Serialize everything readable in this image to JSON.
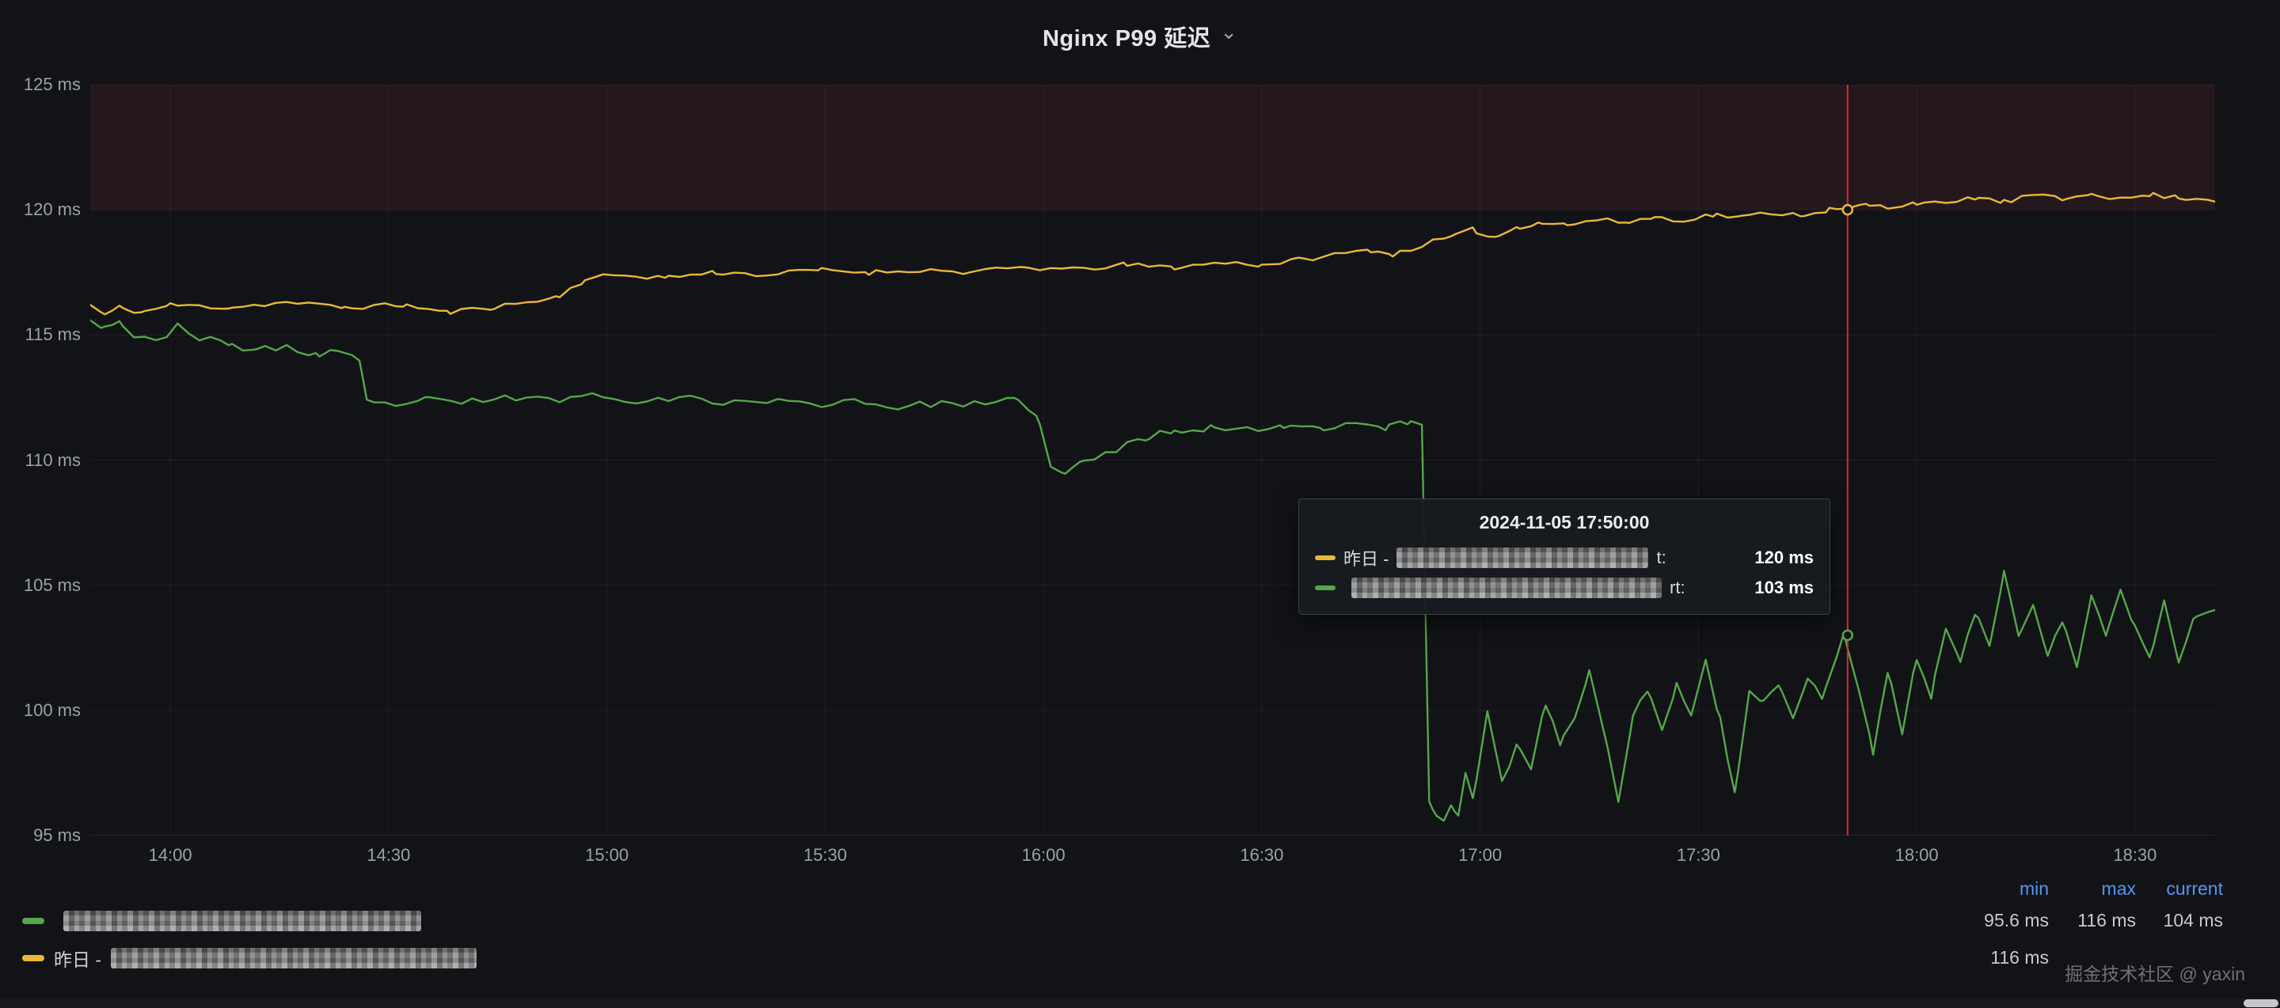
{
  "panel": {
    "title": "Nginx P99 延迟",
    "chevron_icon": "⌄"
  },
  "tooltip": {
    "time": "2024-11-05 17:50:00",
    "rows": [
      {
        "color": "#EAB839",
        "label_prefix": "昨日 - ",
        "redacted_width": 318,
        "label_suffix": "t:",
        "value": "120 ms"
      },
      {
        "color": "#56A64B",
        "label_prefix": "",
        "redacted_width": 392,
        "label_suffix": "rt:",
        "value": "103 ms"
      }
    ]
  },
  "legend": {
    "headers": [
      "min",
      "max",
      "current"
    ],
    "rows": [
      {
        "color": "#56A64B",
        "label_prefix": "",
        "redacted_width": 452,
        "min": "95.6 ms",
        "max": "116 ms",
        "current": "104 ms"
      },
      {
        "color": "#EAB839",
        "label_prefix": "昨日 - ",
        "redacted_width": 462,
        "min": "116 ms",
        "max": "",
        "current": ""
      }
    ]
  },
  "watermark": "掘金技术社区 @ yaxin",
  "chart_data": {
    "type": "line",
    "title": "Nginx P99 延迟",
    "x_unit": "minutes-since-midnight",
    "xlim": [
      829,
      1121
    ],
    "ylim": [
      95,
      125
    ],
    "grid": true,
    "y_ticks": [
      {
        "v": 125,
        "label": "125 ms"
      },
      {
        "v": 120,
        "label": "120 ms"
      },
      {
        "v": 115,
        "label": "115 ms"
      },
      {
        "v": 110,
        "label": "110 ms"
      },
      {
        "v": 105,
        "label": "105 ms"
      },
      {
        "v": 100,
        "label": "100 ms"
      },
      {
        "v": 95,
        "label": "95 ms"
      }
    ],
    "x_ticks": [
      {
        "t": 840,
        "label": "14:00"
      },
      {
        "t": 870,
        "label": "14:30"
      },
      {
        "t": 900,
        "label": "15:00"
      },
      {
        "t": 930,
        "label": "15:30"
      },
      {
        "t": 960,
        "label": "16:00"
      },
      {
        "t": 990,
        "label": "16:30"
      },
      {
        "t": 1020,
        "label": "17:00"
      },
      {
        "t": 1050,
        "label": "17:30"
      },
      {
        "t": 1080,
        "label": "18:00"
      },
      {
        "t": 1110,
        "label": "18:30"
      }
    ],
    "threshold_region": {
      "from": 120,
      "to": 125,
      "color": "rgba(242,73,92,0.09)"
    },
    "annotation": {
      "t": 1070.5,
      "color": "#E02434"
    },
    "markers": [
      {
        "t": 1070.5,
        "v": 120,
        "color": "#EAB839"
      },
      {
        "t": 1070.5,
        "v": 103,
        "color": "#56A64B"
      }
    ],
    "series": [
      {
        "name": "昨日 - [redacted]",
        "color": "#EAB839",
        "noise": 0.1,
        "seed": 11,
        "points": [
          [
            829,
            116.2
          ],
          [
            831,
            115.8
          ],
          [
            833,
            116.1
          ],
          [
            836,
            115.9
          ],
          [
            840,
            116.2
          ],
          [
            848,
            116.1
          ],
          [
            856,
            116.3
          ],
          [
            864,
            116.1
          ],
          [
            872,
            116.2
          ],
          [
            878,
            115.9
          ],
          [
            884,
            116.1
          ],
          [
            889,
            116.3
          ],
          [
            893,
            116.5
          ],
          [
            897,
            117.2
          ],
          [
            901,
            117.4
          ],
          [
            908,
            117.3
          ],
          [
            915,
            117.5
          ],
          [
            922,
            117.4
          ],
          [
            929,
            117.6
          ],
          [
            936,
            117.5
          ],
          [
            943,
            117.6
          ],
          [
            950,
            117.5
          ],
          [
            957,
            117.7
          ],
          [
            964,
            117.6
          ],
          [
            971,
            117.8
          ],
          [
            978,
            117.7
          ],
          [
            985,
            117.9
          ],
          [
            990,
            117.8
          ],
          [
            995,
            118.0
          ],
          [
            1000,
            118.2
          ],
          [
            1005,
            118.4
          ],
          [
            1008,
            118.2
          ],
          [
            1012,
            118.6
          ],
          [
            1016,
            118.9
          ],
          [
            1019,
            119.2
          ],
          [
            1022,
            118.9
          ],
          [
            1025,
            119.3
          ],
          [
            1028,
            119.5
          ],
          [
            1032,
            119.4
          ],
          [
            1036,
            119.6
          ],
          [
            1040,
            119.5
          ],
          [
            1044,
            119.7
          ],
          [
            1048,
            119.6
          ],
          [
            1052,
            119.8
          ],
          [
            1056,
            119.7
          ],
          [
            1060,
            119.9
          ],
          [
            1064,
            119.8
          ],
          [
            1068,
            120.0
          ],
          [
            1070,
            120.0
          ],
          [
            1073,
            120.2
          ],
          [
            1076,
            120.1
          ],
          [
            1080,
            120.3
          ],
          [
            1084,
            120.2
          ],
          [
            1088,
            120.5
          ],
          [
            1092,
            120.3
          ],
          [
            1096,
            120.6
          ],
          [
            1100,
            120.4
          ],
          [
            1104,
            120.7
          ],
          [
            1108,
            120.4
          ],
          [
            1112,
            120.6
          ],
          [
            1116,
            120.5
          ],
          [
            1121,
            120.4
          ]
        ]
      },
      {
        "name": "[redacted]",
        "color": "#56A64B",
        "noise": 0.14,
        "seed": 23,
        "points": [
          [
            829,
            115.7
          ],
          [
            831,
            115.3
          ],
          [
            833,
            115.6
          ],
          [
            835,
            114.9
          ],
          [
            838,
            114.7
          ],
          [
            841,
            115.4
          ],
          [
            844,
            114.9
          ],
          [
            848,
            114.6
          ],
          [
            852,
            114.4
          ],
          [
            856,
            114.5
          ],
          [
            860,
            114.2
          ],
          [
            863,
            114.4
          ],
          [
            866,
            113.9
          ],
          [
            867,
            112.3
          ],
          [
            870,
            112.2
          ],
          [
            875,
            112.4
          ],
          [
            880,
            112.3
          ],
          [
            886,
            112.5
          ],
          [
            892,
            112.4
          ],
          [
            898,
            112.6
          ],
          [
            904,
            112.4
          ],
          [
            910,
            112.5
          ],
          [
            916,
            112.3
          ],
          [
            922,
            112.4
          ],
          [
            928,
            112.2
          ],
          [
            934,
            112.4
          ],
          [
            940,
            112.1
          ],
          [
            946,
            112.3
          ],
          [
            952,
            112.2
          ],
          [
            956,
            112.4
          ],
          [
            959,
            111.9
          ],
          [
            961,
            109.7
          ],
          [
            963,
            109.4
          ],
          [
            965,
            109.9
          ],
          [
            967,
            110.1
          ],
          [
            970,
            110.4
          ],
          [
            974,
            110.9
          ],
          [
            978,
            111.2
          ],
          [
            983,
            111.3
          ],
          [
            988,
            111.2
          ],
          [
            993,
            111.4
          ],
          [
            998,
            111.3
          ],
          [
            1003,
            111.5
          ],
          [
            1007,
            111.3
          ],
          [
            1010,
            111.5
          ],
          [
            1012,
            111.4
          ],
          [
            1013,
            96.4
          ],
          [
            1014,
            95.8
          ],
          [
            1015,
            95.6
          ],
          [
            1016,
            96.2
          ],
          [
            1017,
            95.9
          ],
          [
            1018,
            97.6
          ],
          [
            1019,
            96.4
          ],
          [
            1021,
            99.9
          ],
          [
            1023,
            97.1
          ],
          [
            1025,
            98.6
          ],
          [
            1027,
            97.6
          ],
          [
            1029,
            100.3
          ],
          [
            1031,
            98.7
          ],
          [
            1033,
            99.6
          ],
          [
            1035,
            101.6
          ],
          [
            1037,
            99.1
          ],
          [
            1039,
            96.4
          ],
          [
            1041,
            99.9
          ],
          [
            1043,
            100.7
          ],
          [
            1045,
            99.3
          ],
          [
            1047,
            101.0
          ],
          [
            1049,
            99.9
          ],
          [
            1051,
            102.0
          ],
          [
            1053,
            99.6
          ],
          [
            1055,
            96.6
          ],
          [
            1057,
            100.9
          ],
          [
            1059,
            100.3
          ],
          [
            1061,
            101.1
          ],
          [
            1063,
            99.7
          ],
          [
            1065,
            101.3
          ],
          [
            1067,
            100.5
          ],
          [
            1070,
            103.0
          ],
          [
            1072,
            100.9
          ],
          [
            1074,
            98.3
          ],
          [
            1076,
            101.6
          ],
          [
            1078,
            99.1
          ],
          [
            1080,
            102.1
          ],
          [
            1082,
            100.6
          ],
          [
            1084,
            103.3
          ],
          [
            1086,
            101.9
          ],
          [
            1088,
            103.9
          ],
          [
            1090,
            102.6
          ],
          [
            1092,
            105.6
          ],
          [
            1094,
            103.1
          ],
          [
            1096,
            104.3
          ],
          [
            1098,
            102.1
          ],
          [
            1100,
            103.6
          ],
          [
            1102,
            101.6
          ],
          [
            1104,
            104.6
          ],
          [
            1106,
            102.9
          ],
          [
            1108,
            104.9
          ],
          [
            1110,
            103.3
          ],
          [
            1112,
            102.1
          ],
          [
            1114,
            104.4
          ],
          [
            1116,
            101.9
          ],
          [
            1118,
            103.7
          ],
          [
            1121,
            104.0
          ]
        ]
      }
    ]
  }
}
